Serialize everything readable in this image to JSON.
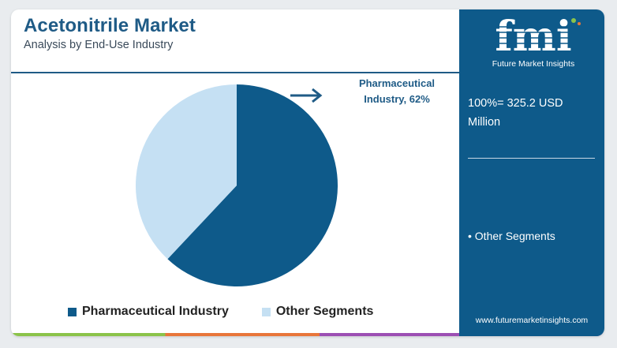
{
  "header": {
    "title": "Acetonitrile Market",
    "subtitle": "Analysis by End-Use Industry"
  },
  "callout": {
    "label": "Pharmaceutical Industry, 62%"
  },
  "legend": [
    {
      "label": "Pharmaceutical Industry",
      "color": "#0e5a8a"
    },
    {
      "label": "Other Segments",
      "color": "#c5e0f3"
    }
  ],
  "sidebar": {
    "logo_text": "fmi",
    "logo_tagline": "Future Market Insights",
    "total_text": "100%= 325.2 USD Million",
    "note": "• Other Segments",
    "website": "www.futuremarketinsights.com"
  },
  "colors": {
    "title": "#1f5b86",
    "primary_slice": "#0e5a8a",
    "secondary_slice": "#c5e0f3",
    "sidebar_bg": "#0e5a8a"
  },
  "chart_data": {
    "type": "pie",
    "categories": [
      "Pharmaceutical Industry",
      "Other Segments"
    ],
    "values": [
      62,
      38
    ],
    "unit": "%",
    "colors": [
      "#0e5a8a",
      "#c5e0f3"
    ],
    "title": "Acetonitrile Market",
    "subtitle": "Analysis by End-Use Industry",
    "total": "100%= 325.2 USD Million",
    "legend_position": "bottom"
  }
}
